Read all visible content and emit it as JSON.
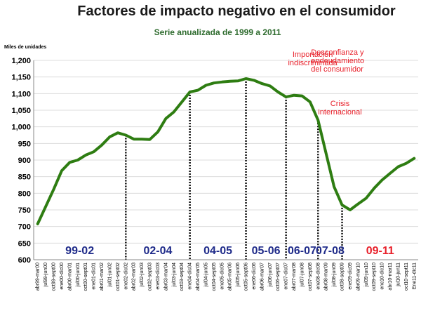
{
  "chart_data": {
    "type": "line",
    "title": "Factores de impacto negativo en el consumidor",
    "subtitle": "Serie anualizada de 1999 a 2011",
    "ylabel": "Miles de unidades",
    "ylim": [
      600,
      1200
    ],
    "yticks": [
      "600",
      "650",
      "700",
      "750",
      "800",
      "850",
      "900",
      "950",
      "1,000",
      "1,050",
      "1,100",
      "1,150",
      "1,200"
    ],
    "grid": true,
    "colors": {
      "line": "#2e7d12",
      "period_dark": "#1f2b8a",
      "period_red": "#e8202a",
      "annotation": "#e8202a"
    },
    "x": [
      "abr99-mar00",
      "jul99-jun00",
      "oct99-sept00",
      "ene00-dic00",
      "abr00-mar01",
      "jul00-jun01",
      "oct00-sept01",
      "ene01-dic01",
      "abr01-mar02",
      "jul01-jun02",
      "oct01-sept02",
      "ene02-dic02",
      "abr02-mar03",
      "jul02-jun03",
      "oct02-sept03",
      "ene03-dic03",
      "abr03-mar04",
      "jul03-jun04",
      "oct03-sept04",
      "ene04-dic04",
      "abr04-mar05",
      "jul04-jun05",
      "oct04-sept05",
      "ene05-dic05",
      "abr05-mar06",
      "jul05-jun06",
      "oct05-sept06",
      "ene06-dic06",
      "abr06-mar07",
      "jul06-jun07",
      "oct06-sept07",
      "ene07-dic07",
      "abr07-mar08",
      "jul07-jun08",
      "oct07-sept08",
      "ene08-dic08",
      "abr08-mar09",
      "jul08-jun09",
      "oct08-sept09",
      "ene09-dic09",
      "abr09-mar10",
      "jul09-jun10",
      "oct09-sept10",
      "ene10-dic10",
      "abr10-mar11",
      "jul10-jun11",
      "oct10-sept11",
      "Ene11-dic11"
    ],
    "series": [
      {
        "values": [
          708,
          760,
          812,
          868,
          893,
          900,
          915,
          925,
          945,
          970,
          982,
          975,
          963,
          963,
          962,
          985,
          1025,
          1045,
          1075,
          1105,
          1110,
          1125,
          1132,
          1135,
          1137,
          1138,
          1145,
          1140,
          1130,
          1123,
          1105,
          1090,
          1095,
          1093,
          1075,
          1020,
          920,
          820,
          765,
          750,
          768,
          785,
          815,
          840,
          860,
          880,
          890,
          905
        ]
      }
    ],
    "periods": [
      {
        "label": "99-02",
        "color": "dark"
      },
      {
        "label": "02-04",
        "color": "dark"
      },
      {
        "label": "04-05",
        "color": "dark"
      },
      {
        "label": "05-06",
        "color": "dark"
      },
      {
        "label": "06-07",
        "color": "dark"
      },
      {
        "label": "07-08",
        "color": "dark"
      },
      {
        "label": "09-11",
        "color": "red"
      }
    ],
    "dividers": [
      11,
      19,
      26,
      31,
      35,
      38
    ],
    "annotations": [
      {
        "lines": [
          "Importación",
          "indiscriminada"
        ]
      },
      {
        "lines": [
          "Desconfianza y",
          "endeudamiento",
          "del consumidor"
        ]
      },
      {
        "lines": [
          "Crisis",
          "internacional"
        ]
      }
    ]
  }
}
